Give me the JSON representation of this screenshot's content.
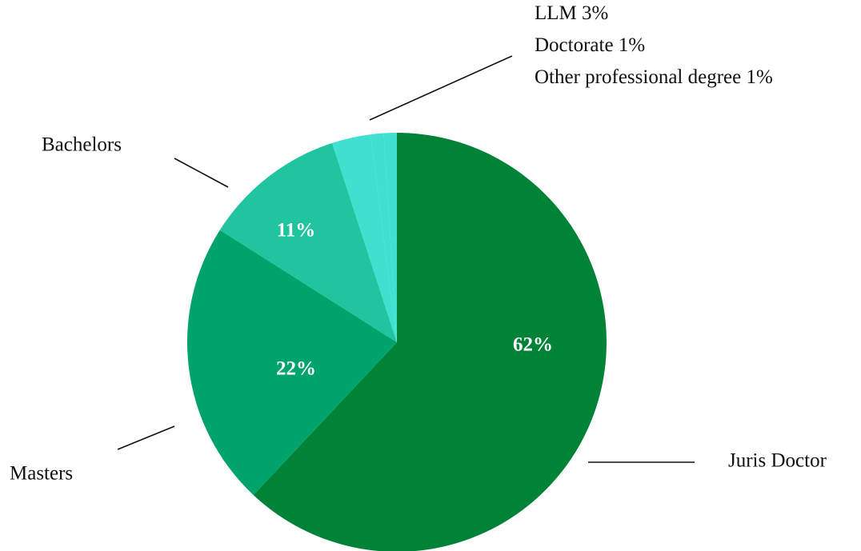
{
  "chart_data": {
    "type": "pie",
    "categories": [
      "Juris Doctor",
      "Masters",
      "Bachelors",
      "LLM",
      "Doctorate",
      "Other professional degree"
    ],
    "values": [
      62,
      22,
      11,
      3,
      1,
      1
    ],
    "value_labels": [
      "62%",
      "22%",
      "11%",
      "3%",
      "1%",
      "1%"
    ],
    "colors": [
      "#008237",
      "#00a36c",
      "#20c49e",
      "#40e0d0",
      "#40e0d0",
      "#40e0d0"
    ]
  }
}
